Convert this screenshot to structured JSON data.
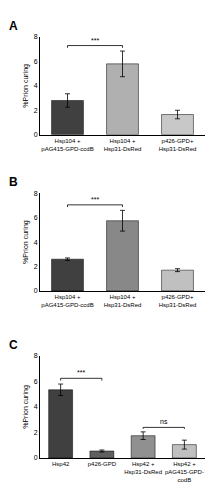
{
  "chart_data": [
    {
      "type": "bar",
      "title": "A",
      "categories": [
        "Hsp104 +\npAG415-GPD-ccdB",
        "Hsp104 +\nHsp31-DsRed",
        "p426-GPD+\nHsp31-DsRed"
      ],
      "values": [
        2.8,
        5.8,
        1.65
      ],
      "errors": [
        0.55,
        1.05,
        0.35
      ],
      "colors": [
        "#404040",
        "#b0b0b0",
        "#c8c8c8"
      ],
      "ylim": [
        0,
        8
      ],
      "yticks": [
        0,
        2,
        4,
        6,
        8
      ],
      "y_label": "%Prion curing",
      "grid": false,
      "annotations": [
        {
          "text": "***",
          "between": [
            0,
            1
          ]
        }
      ]
    },
    {
      "type": "bar",
      "title": "B",
      "categories": [
        "Hsp104 +\npAG415-GPD-ccdB",
        "Hsp104 +\nHsp31-DsRed",
        "p426-GPD+\nHsp31-DsRed"
      ],
      "values": [
        2.6,
        5.75,
        1.7
      ],
      "errors": [
        0.1,
        0.85,
        0.12
      ],
      "colors": [
        "#404040",
        "#888888",
        "#c0c0c0"
      ],
      "ylim": [
        0,
        8
      ],
      "yticks": [
        0,
        2,
        4,
        6,
        8
      ],
      "y_label": "%Prion curing",
      "grid": false,
      "annotations": [
        {
          "text": "***",
          "between": [
            0,
            1
          ]
        }
      ]
    },
    {
      "type": "bar",
      "title": "C",
      "categories": [
        "Hsp42",
        "p426-GPD",
        "Hsp42 +\nHsp31-DsRed",
        "Hsp42 +\npAG415-GPD-\ncodB"
      ],
      "values": [
        5.35,
        0.55,
        1.75,
        1.05
      ],
      "errors": [
        0.45,
        0.08,
        0.3,
        0.35
      ],
      "colors": [
        "#404040",
        "#606060",
        "#909090",
        "#c0c0c0"
      ],
      "ylim": [
        0,
        8
      ],
      "yticks": [
        0,
        2,
        4,
        6,
        8
      ],
      "y_label": "%Prion curing",
      "grid": false,
      "annotations": [
        {
          "text": "***",
          "between": [
            0,
            1
          ]
        },
        {
          "text": "ns",
          "between": [
            2,
            3
          ]
        }
      ]
    }
  ]
}
